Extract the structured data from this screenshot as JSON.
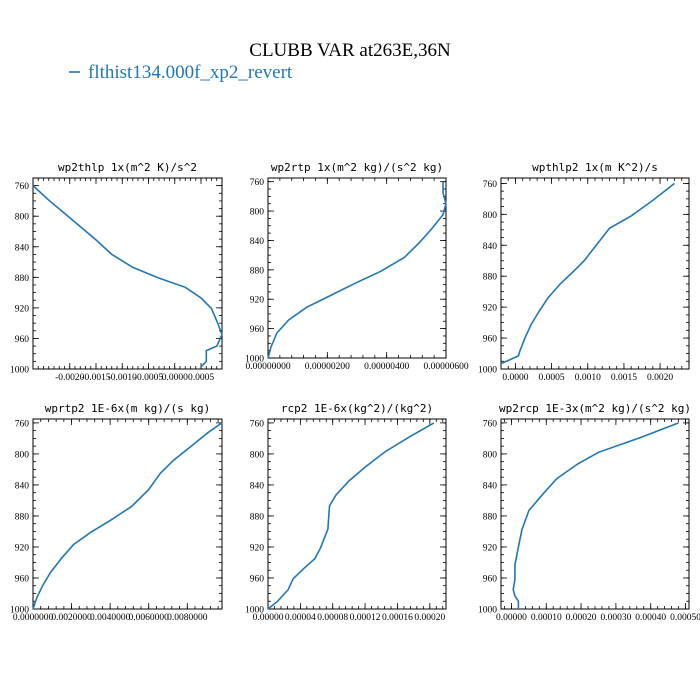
{
  "figure": {
    "title": "CLUBB VAR at263E,36N",
    "legend_label": "flthist134.000f_xp2_revert",
    "legend_color": "#1f77b4"
  },
  "chart_data": [
    {
      "type": "line",
      "title": "wp2thlp  1x(m^2 K)/s^2",
      "xlim": [
        -0.0027,
        0.0009
      ],
      "ylim": [
        1000,
        750
      ],
      "yticks": [
        760,
        800,
        840,
        880,
        920,
        960,
        1000
      ],
      "xticks": [
        -0.002,
        -0.0015,
        -0.001,
        -0.0005,
        0,
        0.0005
      ],
      "xticklabels": [
        "-0.0020",
        "-0.0015",
        "-0.0010",
        "-0.0005",
        "0.0000",
        "0.0005"
      ],
      "series": [
        {
          "x": [
            -0.0027,
            -0.0024,
            -0.002,
            -0.0015,
            -0.0012,
            -0.0008,
            -0.0003,
            0.0002,
            0.0005,
            0.0007,
            0.0008,
            0.0009,
            0.0008,
            0.0006,
            0.0006,
            0.0005
          ],
          "y": [
            760,
            779,
            802,
            831,
            850,
            867,
            881,
            893,
            907,
            921,
            937,
            955,
            970,
            976,
            990,
            997
          ]
        }
      ]
    },
    {
      "type": "line",
      "title": "wp2rtp  1x(m^2 kg)/(s^2 kg)",
      "xlim": [
        0,
        6e-06
      ],
      "ylim": [
        1000,
        755
      ],
      "yticks": [
        760,
        800,
        840,
        880,
        920,
        960,
        1000
      ],
      "xticks": [
        0,
        2e-06,
        4e-06,
        6e-06
      ],
      "xticklabels": [
        "0.00000000",
        "0.00000200",
        "0.00000400",
        "0.00000600"
      ],
      "series": [
        {
          "x": [
            5.9e-06,
            5.9e-06,
            6e-06,
            5.9e-06,
            5.5e-06,
            5.1e-06,
            4.6e-06,
            3.8e-06,
            2.9e-06,
            2.1e-06,
            1.3e-06,
            7e-07,
            3e-07,
            1e-07,
            0
          ],
          "y": [
            760,
            775,
            790,
            805,
            825,
            843,
            863,
            882,
            899,
            915,
            931,
            948,
            966,
            985,
            1000
          ]
        }
      ]
    },
    {
      "type": "line",
      "title": "wpthlp2  1x(m K^2)/s",
      "xlim": [
        -0.0002,
        0.0024
      ],
      "ylim": [
        1000,
        753
      ],
      "yticks": [
        760,
        800,
        840,
        880,
        920,
        960,
        1000
      ],
      "xticks": [
        0,
        0.0005,
        0.001,
        0.0015,
        0.002
      ],
      "xticklabels": [
        "0.0000",
        "0.0005",
        "0.0010",
        "0.0015",
        "0.0020"
      ],
      "series": [
        {
          "x": [
            0.0022,
            0.0019,
            0.0016,
            0.0013,
            0.0011,
            0.00095,
            0.0008,
            0.00062,
            0.00045,
            0.00033,
            0.00022,
            0.00013,
            6e-05,
            4e-05,
            -0.0001,
            -0.0002
          ],
          "y": [
            760,
            782,
            802,
            818,
            842,
            860,
            874,
            890,
            908,
            925,
            942,
            960,
            977,
            983,
            989,
            993
          ]
        }
      ]
    },
    {
      "type": "line",
      "title": "wprtp2  1E-6x(m kg)/(s kg)",
      "xlim": [
        0,
        0.0098
      ],
      "ylim": [
        1000,
        755
      ],
      "yticks": [
        760,
        800,
        840,
        880,
        920,
        960,
        1000
      ],
      "xticks": [
        0,
        0.002,
        0.004,
        0.006,
        0.008
      ],
      "xticklabels": [
        "0.0000000",
        "0.0020000",
        "0.0040000",
        "0.0060000",
        "0.0080000"
      ],
      "series": [
        {
          "x": [
            0.0098,
            0.0091,
            0.0083,
            0.0073,
            0.0066,
            0.006,
            0.0051,
            0.004,
            0.003,
            0.0021,
            0.0015,
            0.0009,
            0.0005,
            0.0002,
            0
          ],
          "y": [
            760,
            772,
            788,
            808,
            825,
            846,
            868,
            886,
            901,
            917,
            934,
            953,
            970,
            985,
            1000
          ]
        }
      ]
    },
    {
      "type": "line",
      "title": "rcp2  1E-6x(kg^2)/(kg^2)",
      "xlim": [
        0,
        0.00022
      ],
      "ylim": [
        1000,
        755
      ],
      "yticks": [
        760,
        800,
        840,
        880,
        920,
        960,
        1000
      ],
      "xticks": [
        0,
        4e-05,
        8e-05,
        0.00012,
        0.00016,
        0.0002
      ],
      "xticklabels": [
        "0.00000",
        "0.00004",
        "0.00008",
        "0.00012",
        "0.00016",
        "0.00020"
      ],
      "series": [
        {
          "x": [
            0.000205,
            0.000175,
            0.000145,
            0.00012,
            0.0001,
            8.4e-05,
            7.6e-05,
            7.4e-05,
            6.5e-05,
            5.8e-05,
            4.4e-05,
            3.1e-05,
            2.5e-05,
            1.2e-05,
            0
          ],
          "y": [
            760,
            778,
            797,
            817,
            835,
            853,
            867,
            897,
            921,
            935,
            948,
            961,
            975,
            990,
            1000
          ]
        }
      ]
    },
    {
      "type": "line",
      "title": "wp2rcp  1E-3x(m^2 kg)/(s^2 kg)",
      "xlim": [
        -3e-05,
        0.00051
      ],
      "ylim": [
        1000,
        755
      ],
      "yticks": [
        760,
        800,
        840,
        880,
        920,
        960,
        1000
      ],
      "xticks": [
        0,
        0.0001,
        0.0002,
        0.0003,
        0.0004,
        0.0005
      ],
      "xticklabels": [
        "0.00000",
        "0.00010",
        "0.00020",
        "0.00030",
        "0.00040",
        "0.00050"
      ],
      "series": [
        {
          "x": [
            0.00048,
            0.00037,
            0.00025,
            0.00019,
            0.00013,
            9e-05,
            5e-05,
            3e-05,
            2e-05,
            1e-05,
            1e-05,
            5e-06,
            1e-05,
            2e-05,
            2e-05
          ],
          "y": [
            760,
            779,
            798,
            813,
            832,
            852,
            873,
            898,
            920,
            943,
            962,
            975,
            983,
            990,
            1000
          ]
        }
      ]
    }
  ]
}
